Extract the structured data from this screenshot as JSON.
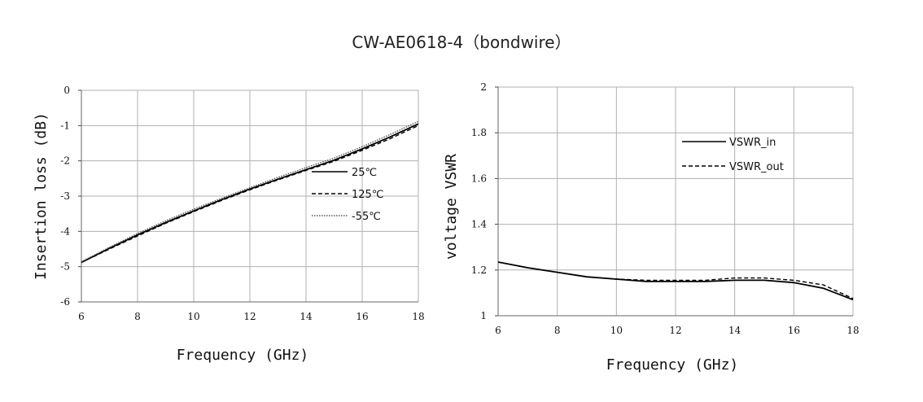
{
  "title": "CW-AE0618-4（bondwire）",
  "chart_data": [
    {
      "type": "line",
      "xlabel": "Frequency (GHz)",
      "ylabel": "Insertion loss (dB)",
      "xlim": [
        6,
        18
      ],
      "ylim": [
        -6,
        0
      ],
      "xticks": [
        "6",
        "8",
        "10",
        "12",
        "14",
        "16",
        "18"
      ],
      "yticks": [
        "0",
        "-1",
        "-2",
        "-3",
        "-4",
        "-5",
        "-6"
      ],
      "grid": true,
      "legend_position": "center-right",
      "series": [
        {
          "name": "25℃",
          "style": "solid",
          "color": "#000000",
          "x": [
            6,
            7,
            8,
            9,
            10,
            11,
            12,
            13,
            14,
            15,
            16,
            17,
            18
          ],
          "y": [
            -4.88,
            -4.48,
            -4.1,
            -3.75,
            -3.42,
            -3.1,
            -2.8,
            -2.52,
            -2.25,
            -1.98,
            -1.66,
            -1.32,
            -0.95
          ]
        },
        {
          "name": "125℃",
          "style": "dashed",
          "color": "#000000",
          "x": [
            6,
            7,
            8,
            9,
            10,
            11,
            12,
            13,
            14,
            15,
            16,
            17,
            18
          ],
          "y": [
            -4.88,
            -4.5,
            -4.13,
            -3.77,
            -3.44,
            -3.12,
            -2.82,
            -2.54,
            -2.27,
            -2.01,
            -1.7,
            -1.37,
            -1.0
          ]
        },
        {
          "name": "-55℃",
          "style": "dotted",
          "color": "#555555",
          "x": [
            6,
            7,
            8,
            9,
            10,
            11,
            12,
            13,
            14,
            15,
            16,
            17,
            18
          ],
          "y": [
            -4.86,
            -4.45,
            -4.06,
            -3.7,
            -3.37,
            -3.06,
            -2.76,
            -2.47,
            -2.19,
            -1.92,
            -1.6,
            -1.25,
            -0.88
          ]
        }
      ]
    },
    {
      "type": "line",
      "xlabel": "Frequency (GHz)",
      "ylabel": "voltage VSWR",
      "xlim": [
        6,
        18
      ],
      "ylim": [
        1,
        2
      ],
      "xticks": [
        "6",
        "8",
        "10",
        "12",
        "14",
        "16",
        "18"
      ],
      "yticks": [
        "2",
        "1.8",
        "1.6",
        "1.4",
        "1.2",
        "1"
      ],
      "grid": true,
      "legend_position": "top-right",
      "series": [
        {
          "name": "VSWR_in",
          "style": "solid",
          "color": "#000000",
          "x": [
            6,
            7,
            8,
            9,
            10,
            11,
            12,
            13,
            14,
            15,
            16,
            17,
            18
          ],
          "y": [
            1.235,
            1.21,
            1.19,
            1.17,
            1.16,
            1.15,
            1.15,
            1.15,
            1.155,
            1.155,
            1.145,
            1.12,
            1.07
          ]
        },
        {
          "name": "VSWR_out",
          "style": "dashed",
          "color": "#000000",
          "x": [
            6,
            7,
            8,
            9,
            10,
            11,
            12,
            13,
            14,
            15,
            16,
            17,
            18
          ],
          "y": [
            1.235,
            1.21,
            1.19,
            1.17,
            1.16,
            1.155,
            1.155,
            1.155,
            1.165,
            1.165,
            1.155,
            1.135,
            1.075
          ]
        }
      ]
    }
  ]
}
